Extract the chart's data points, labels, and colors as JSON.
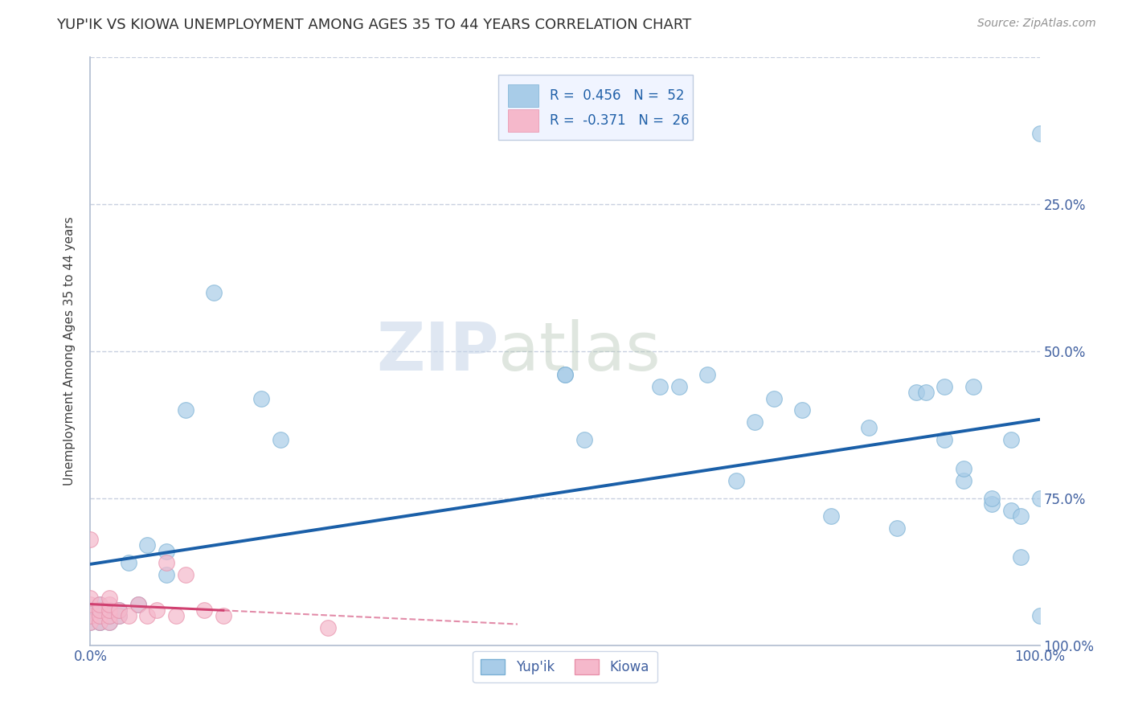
{
  "title": "YUP'IK VS KIOWA UNEMPLOYMENT AMONG AGES 35 TO 44 YEARS CORRELATION CHART",
  "source": "Source: ZipAtlas.com",
  "ylabel": "Unemployment Among Ages 35 to 44 years",
  "xlim": [
    0,
    1.0
  ],
  "ylim": [
    0,
    1.0
  ],
  "xticks": [
    0.0,
    0.25,
    0.5,
    0.75,
    1.0
  ],
  "yticks": [
    0.0,
    0.25,
    0.5,
    0.75,
    1.0
  ],
  "xticklabels": [
    "0.0%",
    "",
    "",
    "",
    "100.0%"
  ],
  "right_yticklabels": [
    "100.0%",
    "75.0%",
    "50.0%",
    "25.0%",
    ""
  ],
  "watermark_zip": "ZIP",
  "watermark_atlas": "atlas",
  "yupik_color": "#a8cce8",
  "kiowa_color": "#f5b8cb",
  "yupik_edge_color": "#7ab0d4",
  "kiowa_edge_color": "#e890aa",
  "yupik_line_color": "#1a5fa8",
  "kiowa_line_color": "#d04070",
  "R_yupik": 0.456,
  "N_yupik": 52,
  "R_kiowa": -0.371,
  "N_kiowa": 26,
  "yupik_x": [
    0.0,
    0.0,
    0.0,
    0.01,
    0.01,
    0.01,
    0.01,
    0.01,
    0.02,
    0.02,
    0.02,
    0.02,
    0.03,
    0.03,
    0.04,
    0.05,
    0.06,
    0.08,
    0.08,
    0.1,
    0.13,
    0.18,
    0.2,
    0.5,
    0.5,
    0.52,
    0.6,
    0.62,
    0.65,
    0.68,
    0.7,
    0.72,
    0.75,
    0.78,
    0.82,
    0.85,
    0.87,
    0.88,
    0.9,
    0.9,
    0.92,
    0.92,
    0.93,
    0.95,
    0.95,
    0.97,
    0.97,
    0.98,
    0.98,
    1.0,
    1.0,
    1.0
  ],
  "yupik_y": [
    0.04,
    0.05,
    0.06,
    0.04,
    0.04,
    0.05,
    0.06,
    0.07,
    0.04,
    0.05,
    0.05,
    0.06,
    0.05,
    0.06,
    0.14,
    0.07,
    0.17,
    0.12,
    0.16,
    0.4,
    0.6,
    0.42,
    0.35,
    0.46,
    0.46,
    0.35,
    0.44,
    0.44,
    0.46,
    0.28,
    0.38,
    0.42,
    0.4,
    0.22,
    0.37,
    0.2,
    0.43,
    0.43,
    0.35,
    0.44,
    0.28,
    0.3,
    0.44,
    0.24,
    0.25,
    0.23,
    0.35,
    0.15,
    0.22,
    0.25,
    0.87,
    0.05
  ],
  "kiowa_x": [
    0.0,
    0.0,
    0.0,
    0.0,
    0.0,
    0.01,
    0.01,
    0.01,
    0.01,
    0.02,
    0.02,
    0.02,
    0.02,
    0.02,
    0.03,
    0.03,
    0.04,
    0.05,
    0.06,
    0.07,
    0.08,
    0.09,
    0.1,
    0.12,
    0.14,
    0.25
  ],
  "kiowa_y": [
    0.04,
    0.05,
    0.07,
    0.08,
    0.18,
    0.04,
    0.05,
    0.06,
    0.07,
    0.04,
    0.05,
    0.06,
    0.07,
    0.08,
    0.05,
    0.06,
    0.05,
    0.07,
    0.05,
    0.06,
    0.14,
    0.05,
    0.12,
    0.06,
    0.05,
    0.03
  ],
  "background_color": "#ffffff",
  "grid_color": "#c8d0e0",
  "title_color": "#303030",
  "axis_label_color": "#404040",
  "tick_color": "#4060a0"
}
